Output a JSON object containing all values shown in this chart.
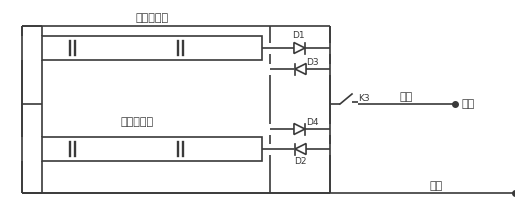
{
  "bg_color": "#ffffff",
  "line_color": "#3a3a3a",
  "text_color": "#3a3a3a",
  "label1": "第一电池组",
  "label2": "第二电池组",
  "label_zongzheng": "总正",
  "label_fuhzai": "负载",
  "label_zongfu": "总负",
  "label_D1": "D1",
  "label_D2": "D2",
  "label_D3": "D3",
  "label_D4": "D4",
  "label_K3": "K3",
  "font_size_label": 8,
  "font_size_small": 6.5,
  "lw": 1.2
}
